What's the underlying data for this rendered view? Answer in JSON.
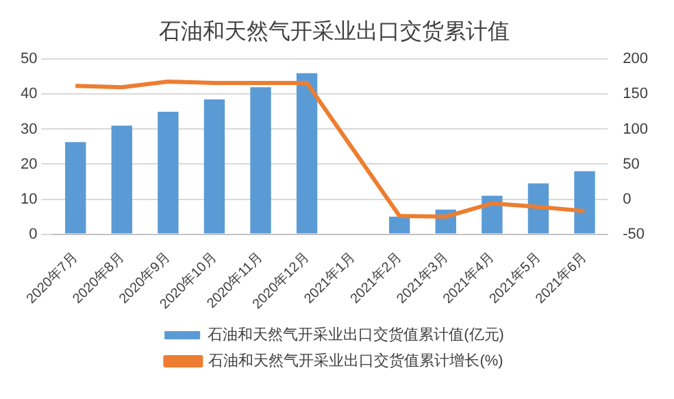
{
  "chart_data": {
    "type": "bar",
    "title": "石油和天然气开采业出口交货累计值",
    "categories": [
      "2020年7月",
      "2020年8月",
      "2020年9月",
      "2020年10月",
      "2020年11月",
      "2020年12月",
      "2021年1月",
      "2021年2月",
      "2021年3月",
      "2021年4月",
      "2021年5月",
      "2021年6月"
    ],
    "series": [
      {
        "name": "石油和天然气开采业出口交货值累计值(亿元)",
        "color": "#5b9bd5",
        "values": [
          26.3,
          31,
          35,
          38.5,
          42,
          46,
          null,
          5,
          7,
          11,
          14.5,
          18
        ]
      },
      {
        "name": "石油和天然气开采业出口交货值累计增长(%)",
        "type": "line",
        "axis": "y2",
        "color": "#ed7d31",
        "values": [
          162,
          160,
          168,
          166,
          166,
          166,
          null,
          -24,
          -25,
          -6,
          -11,
          -17
        ]
      }
    ],
    "ylim": [
      0,
      50
    ],
    "yticks": [
      0,
      10,
      20,
      30,
      40,
      50
    ],
    "y2lim": [
      -50,
      200
    ],
    "y2ticks": [
      -50,
      0,
      50,
      100,
      150,
      200
    ],
    "grid": "y",
    "legend": "bottom",
    "marker": "none"
  }
}
